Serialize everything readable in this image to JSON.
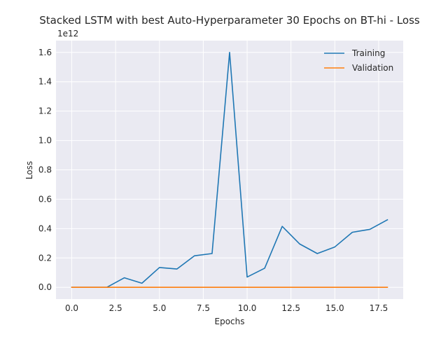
{
  "chart_data": {
    "type": "line",
    "title": "Stacked LSTM with best Auto-Hyperparameter 30 Epochs on BT-hi - Loss",
    "xlabel": "Epochs",
    "ylabel": "Loss",
    "y_offset_label": "1e12",
    "xlim": [
      -0.9,
      18.9
    ],
    "ylim": [
      -0.08,
      1.68
    ],
    "x_ticks": [
      0,
      2.5,
      5,
      7.5,
      10,
      12.5,
      15,
      17.5
    ],
    "x_tick_labels": [
      "0.0",
      "2.5",
      "5.0",
      "7.5",
      "10.0",
      "12.5",
      "15.0",
      "17.5"
    ],
    "y_ticks": [
      0,
      0.2,
      0.4,
      0.6,
      0.8,
      1.0,
      1.2,
      1.4,
      1.6
    ],
    "y_tick_labels": [
      "0.0",
      "0.2",
      "0.4",
      "0.6",
      "0.8",
      "1.0",
      "1.2",
      "1.4",
      "1.6"
    ],
    "grid": true,
    "legend_position": "top-right",
    "x": [
      0,
      1,
      2,
      3,
      4,
      5,
      6,
      7,
      8,
      9,
      10,
      11,
      12,
      13,
      14,
      15,
      16,
      17,
      18
    ],
    "series": [
      {
        "name": "Training",
        "color": "#1f77b4",
        "values": [
          0.0,
          0.0,
          0.0,
          0.065,
          0.028,
          0.135,
          0.125,
          0.215,
          0.23,
          1.6,
          0.07,
          0.13,
          0.415,
          0.295,
          0.23,
          0.275,
          0.375,
          0.395,
          0.46
        ]
      },
      {
        "name": "Validation",
        "color": "#ff7f0e",
        "values": [
          0.0,
          0.0,
          0.0,
          0.0,
          0.0,
          0.0,
          0.0,
          0.0,
          0.0,
          0.0,
          0.0,
          0.0,
          0.0,
          0.0,
          0.0,
          0.0,
          0.0,
          0.0,
          0.0
        ]
      }
    ]
  }
}
